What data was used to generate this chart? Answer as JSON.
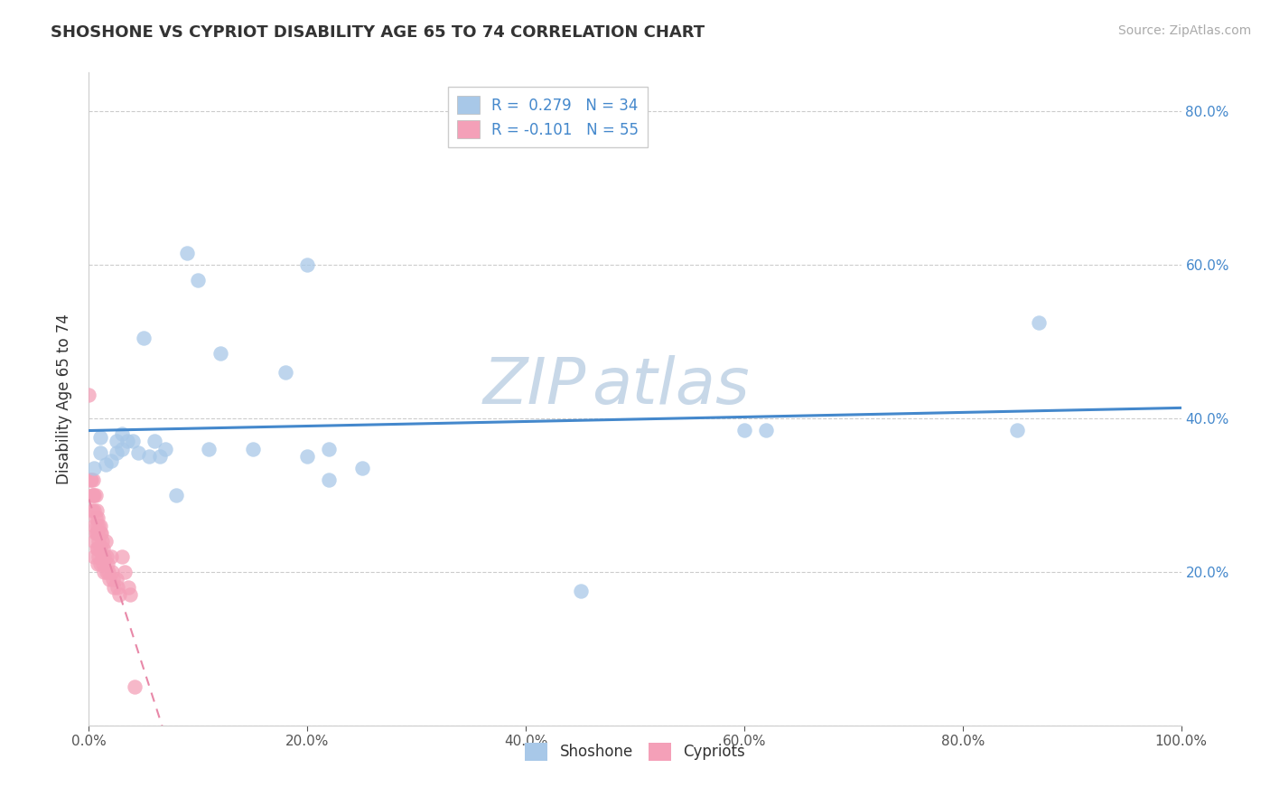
{
  "title": "SHOSHONE VS CYPRIOT DISABILITY AGE 65 TO 74 CORRELATION CHART",
  "source_text": "Source: ZipAtlas.com",
  "ylabel": "Disability Age 65 to 74",
  "xlim": [
    0.0,
    1.0
  ],
  "ylim": [
    0.0,
    0.85
  ],
  "xticks": [
    0.0,
    0.2,
    0.4,
    0.6,
    0.8,
    1.0
  ],
  "xticklabels": [
    "0.0%",
    "20.0%",
    "40.0%",
    "60.0%",
    "80.0%",
    "100.0%"
  ],
  "yticks": [
    0.0,
    0.2,
    0.4,
    0.6,
    0.8
  ],
  "yticklabels_left": [
    "",
    "",
    "",
    "",
    ""
  ],
  "yticklabels_right": [
    "20.0%",
    "40.0%",
    "60.0%",
    "80.0%"
  ],
  "shoshone_color": "#a8c8e8",
  "cypriot_color": "#f4a0b8",
  "shoshone_line_color": "#4488cc",
  "cypriot_line_color": "#e888a8",
  "legend_label_shoshone": "R =  0.279   N = 34",
  "legend_label_cypriot": "R = -0.101   N = 55",
  "legend_R_color": "#4488cc",
  "shoshone_x": [
    0.005,
    0.01,
    0.01,
    0.015,
    0.02,
    0.025,
    0.025,
    0.03,
    0.03,
    0.035,
    0.04,
    0.045,
    0.05,
    0.055,
    0.06,
    0.065,
    0.07,
    0.08,
    0.09,
    0.1,
    0.11,
    0.12,
    0.15,
    0.18,
    0.2,
    0.22,
    0.25,
    0.45,
    0.6,
    0.62,
    0.85,
    0.87,
    0.2,
    0.22
  ],
  "shoshone_y": [
    0.335,
    0.355,
    0.375,
    0.34,
    0.345,
    0.355,
    0.37,
    0.36,
    0.38,
    0.37,
    0.37,
    0.355,
    0.505,
    0.35,
    0.37,
    0.35,
    0.36,
    0.3,
    0.615,
    0.58,
    0.36,
    0.485,
    0.36,
    0.46,
    0.6,
    0.36,
    0.335,
    0.175,
    0.385,
    0.385,
    0.385,
    0.525,
    0.35,
    0.32
  ],
  "cypriot_x": [
    0.0,
    0.001,
    0.002,
    0.003,
    0.003,
    0.004,
    0.004,
    0.005,
    0.005,
    0.005,
    0.005,
    0.005,
    0.006,
    0.006,
    0.006,
    0.007,
    0.007,
    0.007,
    0.007,
    0.008,
    0.008,
    0.008,
    0.008,
    0.009,
    0.009,
    0.009,
    0.01,
    0.01,
    0.01,
    0.01,
    0.011,
    0.012,
    0.012,
    0.013,
    0.013,
    0.014,
    0.014,
    0.015,
    0.016,
    0.016,
    0.017,
    0.018,
    0.019,
    0.02,
    0.021,
    0.022,
    0.023,
    0.025,
    0.026,
    0.028,
    0.03,
    0.033,
    0.036,
    0.038,
    0.042
  ],
  "cypriot_y": [
    0.43,
    0.32,
    0.32,
    0.3,
    0.28,
    0.32,
    0.3,
    0.3,
    0.28,
    0.26,
    0.24,
    0.22,
    0.3,
    0.27,
    0.25,
    0.28,
    0.26,
    0.25,
    0.23,
    0.27,
    0.25,
    0.23,
    0.21,
    0.26,
    0.24,
    0.22,
    0.26,
    0.25,
    0.23,
    0.21,
    0.25,
    0.24,
    0.22,
    0.23,
    0.21,
    0.22,
    0.2,
    0.24,
    0.22,
    0.2,
    0.21,
    0.2,
    0.19,
    0.22,
    0.2,
    0.19,
    0.18,
    0.19,
    0.18,
    0.17,
    0.22,
    0.2,
    0.18,
    0.17,
    0.05
  ],
  "bg_color": "#ffffff",
  "watermark_line1": "ZIP",
  "watermark_line2": "atlas",
  "watermark_color": "#c8d8e8",
  "grid_color": "#cccccc",
  "title_color": "#333333",
  "axis_tick_color": "#555555",
  "right_tick_color": "#4488cc",
  "source_color": "#aaaaaa"
}
